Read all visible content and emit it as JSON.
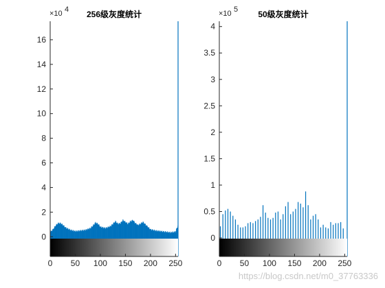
{
  "watermark": "https://blog.csdn.net/m0_37763336",
  "chart_data": [
    {
      "type": "bar",
      "title": "256级灰度统计",
      "bins": 256,
      "xlim": [
        0,
        255
      ],
      "ylim": [
        -1.6,
        17.5
      ],
      "y_exponent": "4",
      "y_ticks": [
        0,
        2,
        4,
        6,
        8,
        10,
        12,
        14,
        16
      ],
      "x_ticks": [
        0,
        50,
        100,
        150,
        200,
        250
      ],
      "bar_color": "#0072bd",
      "profile_x": [
        0,
        5,
        10,
        15,
        20,
        25,
        30,
        40,
        50,
        60,
        70,
        80,
        85,
        90,
        95,
        100,
        110,
        120,
        130,
        135,
        140,
        145,
        150,
        155,
        160,
        165,
        170,
        175,
        180,
        185,
        190,
        195,
        200,
        210,
        220,
        230,
        240,
        250,
        255
      ],
      "profile_y": [
        0.4,
        0.6,
        0.9,
        1.1,
        1.1,
        0.95,
        0.75,
        0.55,
        0.45,
        0.5,
        0.55,
        0.7,
        0.9,
        1.15,
        1.05,
        0.8,
        0.7,
        0.85,
        1.25,
        1.05,
        1.1,
        1.35,
        1.2,
        1.05,
        1.25,
        1.35,
        1.1,
        0.95,
        1.05,
        1.2,
        1.0,
        0.8,
        0.6,
        0.5,
        0.45,
        0.4,
        0.35,
        0.4,
        0.9
      ],
      "gradient": "black-to-white"
    },
    {
      "type": "bar",
      "title": "50级灰度统计",
      "bins": 50,
      "xlim": [
        0,
        255
      ],
      "ylim": [
        -0.35,
        4.1
      ],
      "y_exponent": "5",
      "y_ticks": [
        0,
        0.5,
        1,
        1.5,
        2,
        2.5,
        3,
        3.5,
        4
      ],
      "x_ticks": [
        0,
        50,
        100,
        150,
        200,
        250
      ],
      "bar_color": "#0072bd",
      "x": [
        2,
        7,
        12,
        17,
        22,
        27,
        32,
        37,
        42,
        47,
        52,
        57,
        62,
        67,
        72,
        77,
        82,
        87,
        92,
        97,
        102,
        107,
        112,
        117,
        122,
        127,
        132,
        137,
        142,
        147,
        152,
        157,
        162,
        167,
        172,
        177,
        182,
        187,
        192,
        197,
        202,
        207,
        212,
        217,
        222,
        227,
        232,
        237,
        242,
        247
      ],
      "values": [
        0.22,
        0.45,
        0.52,
        0.55,
        0.5,
        0.42,
        0.35,
        0.25,
        0.2,
        0.2,
        0.22,
        0.28,
        0.3,
        0.28,
        0.32,
        0.35,
        0.4,
        0.62,
        0.48,
        0.38,
        0.35,
        0.38,
        0.48,
        0.5,
        0.35,
        0.45,
        0.6,
        0.68,
        0.45,
        0.5,
        0.55,
        0.68,
        0.65,
        0.58,
        0.88,
        0.62,
        0.35,
        0.42,
        0.45,
        0.35,
        0.2,
        0.25,
        0.2,
        0.18,
        0.3,
        0.25,
        0.28,
        0.28,
        0.3,
        0.18
      ],
      "gradient": "black-to-white"
    }
  ]
}
